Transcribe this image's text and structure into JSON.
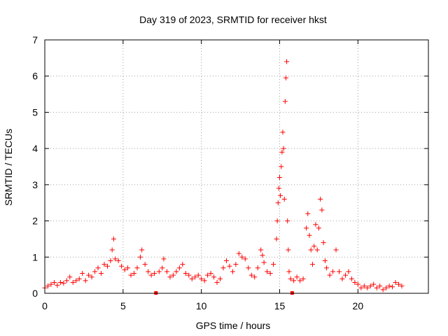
{
  "chart_data": {
    "type": "scatter",
    "title": "Day 319 of 2023, SRMTID for receiver hkst",
    "xlabel": "GPS time / hours",
    "ylabel": "SRMTID / TECUs",
    "xlim": [
      0,
      24.5
    ],
    "ylim": [
      0,
      7
    ],
    "xticks": [
      0,
      5,
      10,
      15,
      20
    ],
    "yticks": [
      0,
      1,
      2,
      3,
      4,
      5,
      6,
      7
    ],
    "xtick_labels": [
      "0",
      "5",
      "10",
      "15",
      "20"
    ],
    "ytick_labels": [
      "0",
      "1",
      "2",
      "3",
      "4",
      "5",
      "6",
      "7"
    ],
    "grid": true,
    "marker": "+",
    "marker_color": "#ff0000",
    "gap_markers": [
      7.1,
      15.8
    ],
    "series": [
      {
        "name": "SRMTID",
        "points": [
          [
            0.0,
            0.15
          ],
          [
            0.2,
            0.2
          ],
          [
            0.4,
            0.25
          ],
          [
            0.6,
            0.3
          ],
          [
            0.8,
            0.22
          ],
          [
            1.0,
            0.3
          ],
          [
            1.2,
            0.28
          ],
          [
            1.4,
            0.35
          ],
          [
            1.6,
            0.45
          ],
          [
            1.8,
            0.3
          ],
          [
            2.0,
            0.35
          ],
          [
            2.2,
            0.4
          ],
          [
            2.4,
            0.55
          ],
          [
            2.6,
            0.35
          ],
          [
            2.8,
            0.5
          ],
          [
            3.0,
            0.45
          ],
          [
            3.2,
            0.6
          ],
          [
            3.4,
            0.7
          ],
          [
            3.6,
            0.55
          ],
          [
            3.8,
            0.8
          ],
          [
            4.0,
            0.75
          ],
          [
            4.2,
            0.9
          ],
          [
            4.3,
            1.2
          ],
          [
            4.4,
            1.5
          ],
          [
            4.5,
            0.95
          ],
          [
            4.7,
            0.9
          ],
          [
            4.9,
            0.75
          ],
          [
            5.1,
            0.65
          ],
          [
            5.3,
            0.7
          ],
          [
            5.5,
            0.5
          ],
          [
            5.7,
            0.55
          ],
          [
            5.9,
            0.7
          ],
          [
            6.1,
            1.0
          ],
          [
            6.2,
            1.2
          ],
          [
            6.4,
            0.8
          ],
          [
            6.6,
            0.6
          ],
          [
            6.8,
            0.5
          ],
          [
            7.0,
            0.55
          ],
          [
            7.3,
            0.6
          ],
          [
            7.5,
            0.7
          ],
          [
            7.6,
            0.95
          ],
          [
            7.8,
            0.6
          ],
          [
            8.0,
            0.45
          ],
          [
            8.2,
            0.5
          ],
          [
            8.4,
            0.6
          ],
          [
            8.6,
            0.7
          ],
          [
            8.8,
            0.8
          ],
          [
            9.0,
            0.55
          ],
          [
            9.2,
            0.5
          ],
          [
            9.4,
            0.4
          ],
          [
            9.6,
            0.45
          ],
          [
            9.8,
            0.5
          ],
          [
            10.0,
            0.4
          ],
          [
            10.2,
            0.35
          ],
          [
            10.4,
            0.5
          ],
          [
            10.6,
            0.55
          ],
          [
            10.8,
            0.45
          ],
          [
            11.0,
            0.3
          ],
          [
            11.2,
            0.4
          ],
          [
            11.4,
            0.7
          ],
          [
            11.6,
            0.9
          ],
          [
            11.8,
            0.75
          ],
          [
            12.0,
            0.6
          ],
          [
            12.2,
            0.8
          ],
          [
            12.4,
            1.1
          ],
          [
            12.6,
            1.0
          ],
          [
            12.8,
            0.95
          ],
          [
            13.0,
            0.7
          ],
          [
            13.2,
            0.5
          ],
          [
            13.4,
            0.45
          ],
          [
            13.6,
            0.7
          ],
          [
            13.8,
            1.2
          ],
          [
            13.9,
            1.05
          ],
          [
            14.0,
            0.85
          ],
          [
            14.2,
            0.6
          ],
          [
            14.4,
            0.55
          ],
          [
            14.6,
            0.8
          ],
          [
            14.8,
            1.5
          ],
          [
            14.85,
            2.0
          ],
          [
            14.9,
            2.5
          ],
          [
            14.95,
            2.9
          ],
          [
            15.0,
            3.2
          ],
          [
            15.05,
            2.7
          ],
          [
            15.1,
            3.5
          ],
          [
            15.15,
            3.9
          ],
          [
            15.2,
            4.45
          ],
          [
            15.25,
            4.0
          ],
          [
            15.3,
            2.6
          ],
          [
            15.35,
            5.3
          ],
          [
            15.4,
            5.95
          ],
          [
            15.45,
            6.4
          ],
          [
            15.5,
            2.0
          ],
          [
            15.55,
            1.2
          ],
          [
            15.6,
            0.6
          ],
          [
            15.7,
            0.4
          ],
          [
            15.9,
            0.35
          ],
          [
            16.1,
            0.45
          ],
          [
            16.3,
            0.35
          ],
          [
            16.5,
            0.4
          ],
          [
            16.7,
            1.8
          ],
          [
            16.8,
            2.2
          ],
          [
            16.9,
            1.6
          ],
          [
            17.0,
            1.2
          ],
          [
            17.1,
            0.8
          ],
          [
            17.2,
            1.3
          ],
          [
            17.3,
            1.9
          ],
          [
            17.4,
            1.2
          ],
          [
            17.5,
            1.8
          ],
          [
            17.6,
            2.6
          ],
          [
            17.7,
            2.3
          ],
          [
            17.8,
            1.4
          ],
          [
            17.9,
            0.9
          ],
          [
            18.0,
            0.7
          ],
          [
            18.2,
            0.5
          ],
          [
            18.4,
            0.6
          ],
          [
            18.6,
            1.2
          ],
          [
            18.8,
            0.6
          ],
          [
            19.0,
            0.4
          ],
          [
            19.2,
            0.5
          ],
          [
            19.4,
            0.6
          ],
          [
            19.6,
            0.4
          ],
          [
            19.8,
            0.3
          ],
          [
            20.0,
            0.25
          ],
          [
            20.2,
            0.15
          ],
          [
            20.4,
            0.2
          ],
          [
            20.6,
            0.15
          ],
          [
            20.8,
            0.2
          ],
          [
            21.0,
            0.25
          ],
          [
            21.2,
            0.15
          ],
          [
            21.4,
            0.2
          ],
          [
            21.6,
            0.1
          ],
          [
            21.8,
            0.15
          ],
          [
            22.0,
            0.2
          ],
          [
            22.2,
            0.18
          ],
          [
            22.4,
            0.3
          ],
          [
            22.6,
            0.25
          ],
          [
            22.8,
            0.2
          ]
        ]
      }
    ]
  }
}
